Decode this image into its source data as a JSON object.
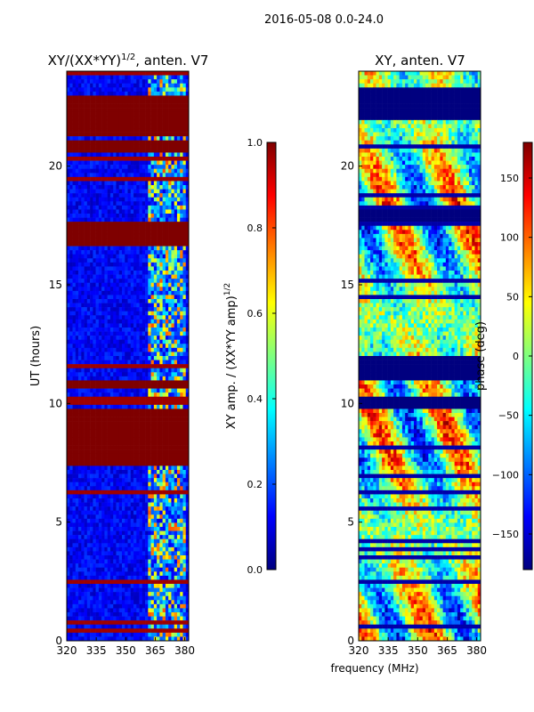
{
  "figure_title": "2016-05-08 0.0-24.0",
  "xlabel_shared": "frequency (MHz)",
  "colormap": [
    "#00007f",
    "#0000ff",
    "#007fff",
    "#00ffff",
    "#7fff7f",
    "#ffff00",
    "#ff7f00",
    "#ff0000",
    "#7f0000"
  ],
  "chart_data": [
    {
      "type": "heatmap",
      "title_main": "XY/(XX*YY)",
      "title_sup": "1/2",
      "title_tail": ", anten. V7",
      "ylabel": "UT (hours)",
      "xlim": [
        320,
        382
      ],
      "ylim": [
        0,
        24
      ],
      "xticks": [
        320,
        335,
        350,
        365,
        380
      ],
      "yticks": [
        0,
        5,
        10,
        15,
        20
      ],
      "flag_bands_hours": [
        [
          21.3,
          22.9
        ],
        [
          20.6,
          21.0
        ],
        [
          16.6,
          17.6
        ],
        [
          10.6,
          11.0
        ],
        [
          7.4,
          9.7
        ]
      ],
      "colorbar": {
        "label_main": "XY amp. / (XX*YY amp)",
        "label_sup": "1/2",
        "vmin": 0.0,
        "vmax": 1.0,
        "ticks": [
          "0.0",
          "0.2",
          "0.4",
          "0.6",
          "0.8",
          "1.0"
        ]
      }
    },
    {
      "type": "heatmap",
      "title": "XY, anten. V7",
      "ylabel": "",
      "xlim": [
        320,
        382
      ],
      "ylim": [
        0,
        24
      ],
      "xticks": [
        320,
        335,
        350,
        365,
        380
      ],
      "yticks": [
        0,
        5,
        10,
        15,
        20
      ],
      "flag_bands_hours": [
        [
          22.0,
          23.3
        ],
        [
          17.7,
          18.2
        ],
        [
          11.0,
          12.0
        ],
        [
          9.8,
          10.2
        ]
      ],
      "colorbar": {
        "label": "phase (deg)",
        "vmin": -180,
        "vmax": 180,
        "ticks": [
          "150",
          "100",
          "50",
          "0",
          "−50",
          "−100",
          "−150"
        ],
        "tick_values": [
          150,
          100,
          50,
          0,
          -50,
          -100,
          -150
        ]
      }
    }
  ]
}
